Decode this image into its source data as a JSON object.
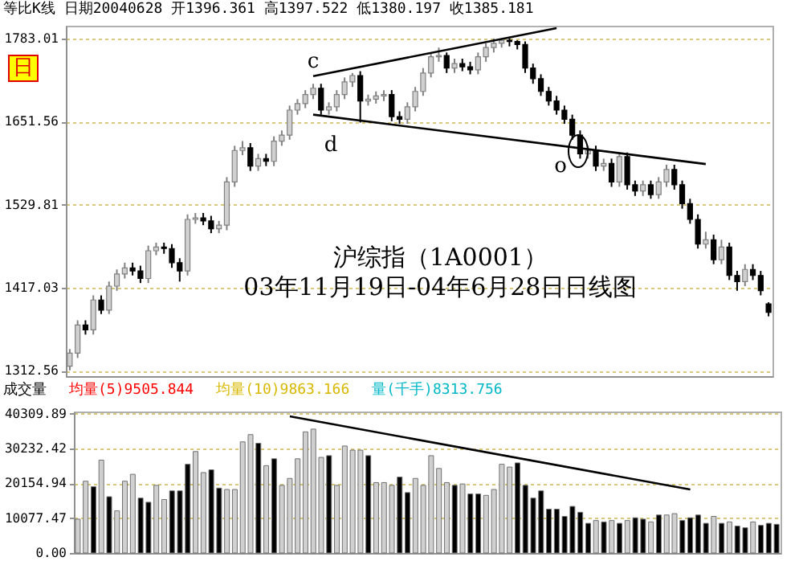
{
  "chart_data": [
    {
      "type": "candlestick",
      "title": "沪综指（1A0001）",
      "subtitle": "03年11月19日-04年6月28日日线图",
      "categories": [
        null,
        null,
        null,
        null,
        null,
        null,
        null,
        null,
        null,
        null,
        null,
        null,
        null,
        null,
        null,
        null,
        null,
        null,
        null,
        null,
        null,
        null,
        null,
        null,
        null,
        null,
        null,
        null,
        null,
        null,
        null,
        null,
        null,
        null,
        null,
        null,
        null,
        null,
        null,
        null,
        null,
        null,
        null,
        null,
        null,
        null,
        null,
        null,
        null,
        null,
        null,
        null,
        null,
        null,
        null,
        null,
        null,
        null,
        null,
        null,
        null,
        null,
        null,
        null,
        null,
        null,
        null,
        null,
        null,
        null,
        null,
        null,
        null,
        null,
        null,
        null,
        null,
        null,
        null,
        null,
        null,
        null,
        null,
        null,
        null,
        null,
        null,
        null,
        null,
        null
      ],
      "ohlc": [
        [
          1318,
          1339,
          1313,
          1334
        ],
        [
          1334,
          1375,
          1328,
          1369
        ],
        [
          1369,
          1375,
          1357,
          1363
        ],
        [
          1363,
          1407,
          1357,
          1401
        ],
        [
          1401,
          1407,
          1383,
          1388
        ],
        [
          1388,
          1425,
          1383,
          1419
        ],
        [
          1419,
          1441,
          1413,
          1435
        ],
        [
          1435,
          1450,
          1429,
          1443
        ],
        [
          1443,
          1450,
          1433,
          1439
        ],
        [
          1439,
          1446,
          1423,
          1429
        ],
        [
          1429,
          1473,
          1423,
          1466
        ],
        [
          1466,
          1477,
          1460,
          1471
        ],
        [
          1471,
          1477,
          1462,
          1469
        ],
        [
          1469,
          1475,
          1443,
          1450
        ],
        [
          1450,
          1456,
          1425,
          1439
        ],
        [
          1439,
          1516,
          1433,
          1509
        ],
        [
          1509,
          1518,
          1503,
          1511
        ],
        [
          1511,
          1518,
          1501,
          1507
        ],
        [
          1507,
          1514,
          1490,
          1496
        ],
        [
          1496,
          1507,
          1490,
          1501
        ],
        [
          1501,
          1569,
          1494,
          1562
        ],
        [
          1562,
          1615,
          1555,
          1608
        ],
        [
          1608,
          1622,
          1601,
          1612
        ],
        [
          1612,
          1619,
          1578,
          1585
        ],
        [
          1585,
          1603,
          1578,
          1596
        ],
        [
          1596,
          1603,
          1585,
          1592
        ],
        [
          1592,
          1629,
          1585,
          1622
        ],
        [
          1622,
          1638,
          1615,
          1631
        ],
        [
          1631,
          1676,
          1624,
          1669
        ],
        [
          1669,
          1686,
          1662,
          1679
        ],
        [
          1679,
          1700,
          1672,
          1693
        ],
        [
          1693,
          1710,
          1686,
          1703
        ],
        [
          1703,
          1710,
          1662,
          1669
        ],
        [
          1669,
          1681,
          1662,
          1674
        ],
        [
          1674,
          1700,
          1667,
          1693
        ],
        [
          1693,
          1720,
          1686,
          1713
        ],
        [
          1713,
          1727,
          1705,
          1723
        ],
        [
          1723,
          1730,
          1650,
          1683
        ],
        [
          1683,
          1693,
          1676,
          1686
        ],
        [
          1686,
          1698,
          1679,
          1691
        ],
        [
          1691,
          1700,
          1683,
          1693
        ],
        [
          1693,
          1700,
          1652,
          1659
        ],
        [
          1659,
          1667,
          1648,
          1655
        ],
        [
          1655,
          1681,
          1648,
          1674
        ],
        [
          1674,
          1705,
          1667,
          1698
        ],
        [
          1698,
          1735,
          1691,
          1727
        ],
        [
          1727,
          1760,
          1720,
          1753
        ],
        [
          1753,
          1768,
          1745,
          1755
        ],
        [
          1755,
          1760,
          1727,
          1735
        ],
        [
          1735,
          1750,
          1727,
          1742
        ],
        [
          1742,
          1750,
          1730,
          1737
        ],
        [
          1737,
          1745,
          1725,
          1732
        ],
        [
          1732,
          1760,
          1725,
          1753
        ],
        [
          1753,
          1775,
          1745,
          1768
        ],
        [
          1768,
          1783,
          1760,
          1775
        ],
        [
          1775,
          1783,
          1768,
          1780
        ],
        [
          1780,
          1783,
          1770,
          1778
        ],
        [
          1778,
          1780,
          1765,
          1773
        ],
        [
          1773,
          1778,
          1727,
          1735
        ],
        [
          1735,
          1742,
          1710,
          1718
        ],
        [
          1718,
          1725,
          1691,
          1698
        ],
        [
          1698,
          1705,
          1676,
          1683
        ],
        [
          1683,
          1691,
          1662,
          1669
        ],
        [
          1669,
          1676,
          1648,
          1655
        ],
        [
          1655,
          1662,
          1624,
          1631
        ],
        [
          1631,
          1638,
          1596,
          1603
        ],
        [
          1603,
          1615,
          1596,
          1608
        ],
        [
          1608,
          1615,
          1578,
          1585
        ],
        [
          1585,
          1596,
          1578,
          1589
        ],
        [
          1589,
          1596,
          1555,
          1562
        ],
        [
          1562,
          1605,
          1555,
          1599
        ],
        [
          1599,
          1605,
          1551,
          1558
        ],
        [
          1558,
          1564,
          1542,
          1549
        ],
        [
          1549,
          1564,
          1542,
          1558
        ],
        [
          1558,
          1564,
          1538,
          1544
        ],
        [
          1544,
          1569,
          1538,
          1562
        ],
        [
          1562,
          1587,
          1555,
          1580
        ],
        [
          1580,
          1587,
          1551,
          1558
        ],
        [
          1558,
          1564,
          1524,
          1531
        ],
        [
          1531,
          1538,
          1503,
          1509
        ],
        [
          1509,
          1516,
          1469,
          1475
        ],
        [
          1475,
          1492,
          1469,
          1481
        ],
        [
          1481,
          1488,
          1448,
          1454
        ],
        [
          1454,
          1481,
          1448,
          1471
        ],
        [
          1471,
          1477,
          1427,
          1433
        ],
        [
          1433,
          1439,
          1413,
          1425
        ],
        [
          1425,
          1448,
          1419,
          1441
        ],
        [
          1441,
          1448,
          1427,
          1433
        ],
        [
          1433,
          1439,
          1407,
          1413
        ],
        [
          1396,
          1398,
          1380,
          1385
        ]
      ],
      "series": [
        {
          "type": "line",
          "values": [
            null,
            null,
            null,
            null,
            null,
            null,
            null,
            null,
            null,
            null,
            null,
            null,
            null,
            null,
            null,
            null,
            null,
            null,
            null,
            null,
            null,
            null,
            null,
            null,
            null,
            null,
            null,
            null,
            null,
            null,
            null,
            1722,
            null,
            null,
            null,
            null,
            null,
            null,
            null,
            null,
            null,
            null,
            null,
            null,
            null,
            null,
            null,
            null,
            null,
            null,
            null,
            null,
            null,
            null,
            null,
            null,
            null,
            null,
            null,
            null,
            null,
            null,
            1800,
            null,
            null,
            null,
            null,
            null,
            null,
            null,
            null,
            null,
            null,
            null,
            null,
            null,
            null,
            null,
            null,
            null,
            null,
            null,
            null,
            null,
            null,
            null,
            null,
            null,
            null,
            null
          ],
          "color": "#000000"
        },
        {
          "type": "line",
          "values": [
            null,
            null,
            null,
            null,
            null,
            null,
            null,
            null,
            null,
            null,
            null,
            null,
            null,
            null,
            null,
            null,
            null,
            null,
            null,
            null,
            null,
            null,
            null,
            null,
            null,
            null,
            null,
            null,
            null,
            null,
            null,
            1662,
            null,
            null,
            null,
            null,
            null,
            null,
            null,
            null,
            null,
            null,
            null,
            null,
            null,
            null,
            null,
            null,
            null,
            null,
            null,
            null,
            null,
            null,
            null,
            null,
            null,
            null,
            null,
            null,
            null,
            null,
            null,
            null,
            null,
            null,
            null,
            null,
            null,
            null,
            null,
            null,
            null,
            null,
            null,
            null,
            null,
            null,
            null,
            null,
            null,
            1588,
            null,
            null,
            null,
            null,
            null,
            null,
            null,
            null
          ],
          "color": "#000000"
        }
      ],
      "ylim": [
        1306,
        1804
      ],
      "yticks": [
        1312.56,
        1417.03,
        1529.81,
        1651.56,
        1783.01
      ],
      "log": "y",
      "grid": "y",
      "tick_labels": "y",
      "annotations": [
        "等比K线 日期20040628 开1396.361 高1397.522 低1380.197 收1385.181",
        "日",
        "c",
        "d",
        "o"
      ]
    },
    {
      "type": "bar",
      "title": "成交量",
      "categories": [
        null,
        null,
        null,
        null,
        null,
        null,
        null,
        null,
        null,
        null,
        null,
        null,
        null,
        null,
        null,
        null,
        null,
        null,
        null,
        null,
        null,
        null,
        null,
        null,
        null,
        null,
        null,
        null,
        null,
        null,
        null,
        null,
        null,
        null,
        null,
        null,
        null,
        null,
        null,
        null,
        null,
        null,
        null,
        null,
        null,
        null,
        null,
        null,
        null,
        null,
        null,
        null,
        null,
        null,
        null,
        null,
        null,
        null,
        null,
        null,
        null,
        null,
        null,
        null,
        null,
        null,
        null,
        null,
        null,
        null,
        null,
        null,
        null,
        null,
        null,
        null,
        null,
        null,
        null,
        null,
        null,
        null,
        null,
        null,
        null,
        null,
        null,
        null,
        null,
        null
      ],
      "series": [
        {
          "colors": [
            "#d0d0d0",
            "#d0d0d0",
            "#000000",
            "#d0d0d0",
            "#000000",
            "#d0d0d0",
            "#d0d0d0",
            "#d0d0d0",
            "#000000",
            "#000000",
            "#d0d0d0",
            "#d0d0d0",
            "#000000",
            "#000000",
            "#000000",
            "#d0d0d0",
            "#d0d0d0",
            "#000000",
            "#000000",
            "#d0d0d0",
            "#d0d0d0",
            "#d0d0d0",
            "#d0d0d0",
            "#000000",
            "#d0d0d0",
            "#000000",
            "#d0d0d0",
            "#d0d0d0",
            "#d0d0d0",
            "#d0d0d0",
            "#d0d0d0",
            "#d0d0d0",
            "#000000",
            "#d0d0d0",
            "#d0d0d0",
            "#d0d0d0",
            "#d0d0d0",
            "#000000",
            "#d0d0d0",
            "#d0d0d0",
            "#d0d0d0",
            "#000000",
            "#000000",
            "#d0d0d0",
            "#d0d0d0",
            "#d0d0d0",
            "#d0d0d0",
            "#d0d0d0",
            "#000000",
            "#d0d0d0",
            "#000000",
            "#000000",
            "#d0d0d0",
            "#d0d0d0",
            "#d0d0d0",
            "#d0d0d0",
            "#000000",
            "#000000",
            "#000000",
            "#000000",
            "#000000",
            "#000000",
            "#000000",
            "#000000",
            "#000000",
            "#000000",
            "#d0d0d0",
            "#000000",
            "#d0d0d0",
            "#000000",
            "#d0d0d0",
            "#000000",
            "#000000",
            "#d0d0d0",
            "#000000",
            "#d0d0d0",
            "#d0d0d0",
            "#000000",
            "#000000",
            "#000000",
            "#000000",
            "#d0d0d0",
            "#000000",
            "#d0d0d0",
            "#000000",
            "#000000",
            "#d0d0d0",
            "#000000",
            "#000000",
            "#000000"
          ],
          "values": [
            9800,
            20800,
            19200,
            26900,
            16300,
            12200,
            20800,
            22800,
            15900,
            14700,
            19600,
            15500,
            18000,
            18000,
            25700,
            29400,
            23300,
            24100,
            18800,
            18400,
            18400,
            32200,
            34300,
            31800,
            25300,
            27300,
            19600,
            21600,
            27300,
            35100,
            35900,
            27700,
            28200,
            19600,
            31000,
            29800,
            29800,
            28200,
            20400,
            20400,
            19600,
            22000,
            17500,
            21600,
            19600,
            28200,
            24500,
            20400,
            19600,
            20000,
            17100,
            17100,
            16700,
            18400,
            25700,
            24900,
            26100,
            19600,
            15900,
            18000,
            12700,
            12700,
            10600,
            13500,
            11800,
            8600,
            9400,
            9000,
            9400,
            8600,
            9400,
            10200,
            9800,
            9000,
            11000,
            11000,
            11400,
            9400,
            10200,
            11000,
            8600,
            10600,
            8600,
            9000,
            7800,
            7300,
            9000,
            8000,
            8600,
            8300
          ]
        },
        {
          "type": "line",
          "values": [
            null,
            null,
            null,
            null,
            null,
            null,
            null,
            null,
            null,
            null,
            null,
            null,
            null,
            null,
            null,
            null,
            null,
            null,
            null,
            null,
            null,
            null,
            null,
            null,
            null,
            null,
            null,
            39600,
            null,
            null,
            null,
            null,
            null,
            null,
            null,
            null,
            null,
            null,
            null,
            null,
            null,
            null,
            null,
            null,
            null,
            null,
            null,
            null,
            null,
            null,
            null,
            null,
            null,
            null,
            null,
            null,
            null,
            null,
            null,
            null,
            null,
            null,
            null,
            null,
            null,
            null,
            null,
            null,
            null,
            null,
            null,
            null,
            null,
            null,
            null,
            null,
            null,
            null,
            18400,
            null,
            null,
            null,
            null,
            null,
            null,
            null,
            null,
            null,
            null,
            null
          ],
          "color": "#000000"
        }
      ],
      "ylim": [
        0,
        41000
      ],
      "yticks": [
        {
          "value": 0,
          "label": "0.00"
        },
        10077.47,
        20154.94,
        30232.42,
        40309.89
      ],
      "grid": "y",
      "tick_labels": "y",
      "annotations": [
        "均量(5)9505.844",
        "均量(10)9863.166",
        "量(千手)8313.756"
      ]
    }
  ]
}
